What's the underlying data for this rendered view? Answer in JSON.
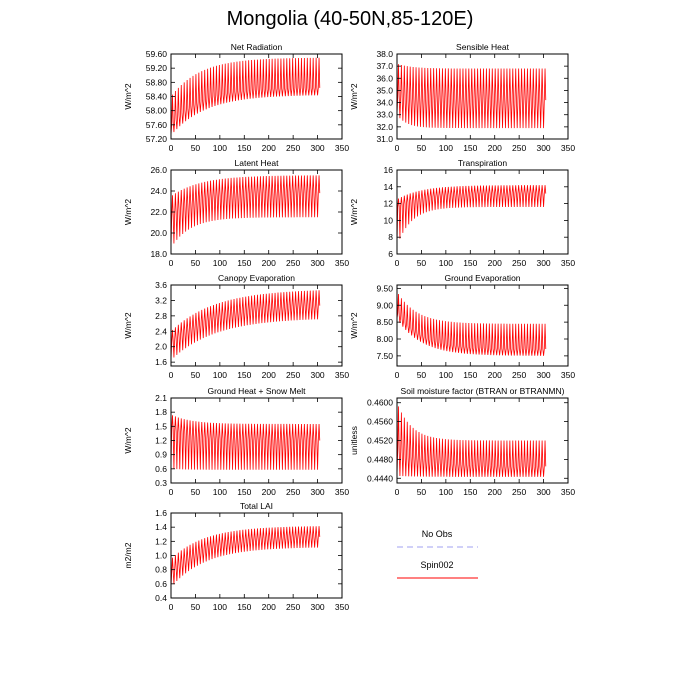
{
  "title": "Mongolia (40-50N,85-120E)",
  "legend": {
    "entries": [
      {
        "label": "No Obs",
        "color": "#a0a0f0",
        "style": "dashed"
      },
      {
        "label": "Spin002",
        "color": "#ff0000",
        "style": "solid"
      }
    ]
  },
  "chart_data": [
    {
      "type": "line",
      "title": "Net Radiation",
      "ylabel": "W/m^2",
      "xlim": [
        0,
        350
      ],
      "xticks": [
        0,
        50,
        100,
        150,
        200,
        250,
        300,
        350
      ],
      "ylim": [
        57.2,
        59.6
      ],
      "yticks": [
        "57.20",
        "57.60",
        "58.00",
        "58.40",
        "58.80",
        "59.20",
        "59.60"
      ],
      "series": [
        {
          "name": "Spin002",
          "color": "#ff0000",
          "x_end": 305,
          "period": 6,
          "low": {
            "start": 57.3,
            "end": 58.45,
            "tau": 70
          },
          "high": {
            "start": 58.4,
            "end": 59.5,
            "tau": 60
          },
          "mid": {
            "start": 57.6,
            "end": 58.65,
            "tau": 60
          }
        }
      ]
    },
    {
      "type": "line",
      "title": "Sensible Heat",
      "ylabel": "W/m^2",
      "xlim": [
        0,
        350
      ],
      "xticks": [
        0,
        50,
        100,
        150,
        200,
        250,
        300,
        350
      ],
      "ylim": [
        31.0,
        38.0
      ],
      "yticks": [
        "31.0",
        "32.0",
        "33.0",
        "34.0",
        "35.0",
        "36.0",
        "37.0",
        "38.0"
      ],
      "series": [
        {
          "name": "Spin002",
          "color": "#ff0000",
          "x_end": 305,
          "period": 6,
          "low": {
            "start": 33.0,
            "end": 31.9,
            "tau": 20
          },
          "high": {
            "start": 37.2,
            "end": 36.8,
            "tau": 30
          },
          "mid": {
            "start": 34.5,
            "end": 34.2,
            "tau": 30
          }
        }
      ]
    },
    {
      "type": "line",
      "title": "Latent Heat",
      "ylabel": "W/m^2",
      "xlim": [
        0,
        350
      ],
      "xticks": [
        0,
        50,
        100,
        150,
        200,
        250,
        300,
        350
      ],
      "ylim": [
        18.0,
        26.0
      ],
      "yticks": [
        "18.0",
        "20.0",
        "22.0",
        "24.0",
        "26.0"
      ],
      "series": [
        {
          "name": "Spin002",
          "color": "#ff0000",
          "x_end": 305,
          "period": 6,
          "low": {
            "start": 18.6,
            "end": 21.5,
            "tau": 40
          },
          "high": {
            "start": 23.5,
            "end": 25.5,
            "tau": 60
          },
          "mid": {
            "start": 21.5,
            "end": 23.8,
            "tau": 50
          }
        }
      ]
    },
    {
      "type": "line",
      "title": "Transpiration",
      "ylabel": "W/m^2",
      "xlim": [
        0,
        350
      ],
      "xticks": [
        0,
        50,
        100,
        150,
        200,
        250,
        300,
        350
      ],
      "ylim": [
        6,
        16
      ],
      "yticks": [
        "6",
        "8",
        "10",
        "12",
        "14",
        "16"
      ],
      "series": [
        {
          "name": "Spin002",
          "color": "#ff0000",
          "x_end": 305,
          "period": 6,
          "low": {
            "start": 7.0,
            "end": 11.6,
            "tau": 30
          },
          "high": {
            "start": 12.5,
            "end": 14.2,
            "tau": 50
          },
          "mid": {
            "start": 11.5,
            "end": 13.2,
            "tau": 50
          }
        }
      ]
    },
    {
      "type": "line",
      "title": "Canopy Evaporation",
      "ylabel": "W/m^2",
      "xlim": [
        0,
        350
      ],
      "xticks": [
        0,
        50,
        100,
        150,
        200,
        250,
        300,
        350
      ],
      "ylim": [
        1.5,
        3.6
      ],
      "yticks": [
        "1.6",
        "2.0",
        "2.4",
        "2.8",
        "3.2",
        "3.6"
      ],
      "series": [
        {
          "name": "Spin002",
          "color": "#ff0000",
          "x_end": 305,
          "period": 6,
          "low": {
            "start": 1.65,
            "end": 2.75,
            "tau": 90
          },
          "high": {
            "start": 2.4,
            "end": 3.5,
            "tau": 90
          },
          "mid": {
            "start": 2.1,
            "end": 3.1,
            "tau": 90
          }
        }
      ]
    },
    {
      "type": "line",
      "title": "Ground Evaporation",
      "ylabel": "W/m^2",
      "xlim": [
        0,
        350
      ],
      "xticks": [
        0,
        50,
        100,
        150,
        200,
        250,
        300,
        350
      ],
      "ylim": [
        7.2,
        9.6
      ],
      "yticks": [
        "7.50",
        "8.00",
        "8.50",
        "9.00",
        "9.50"
      ],
      "series": [
        {
          "name": "Spin002",
          "color": "#ff0000",
          "x_end": 305,
          "period": 6,
          "low": {
            "start": 8.6,
            "end": 7.5,
            "tau": 50
          },
          "high": {
            "start": 9.4,
            "end": 8.45,
            "tau": 40
          },
          "mid": {
            "start": 8.8,
            "end": 7.7,
            "tau": 50
          }
        }
      ]
    },
    {
      "type": "line",
      "title": "Ground Heat + Snow Melt",
      "ylabel": "W/m^2",
      "xlim": [
        0,
        350
      ],
      "xticks": [
        0,
        50,
        100,
        150,
        200,
        250,
        300,
        350
      ],
      "ylim": [
        0.3,
        2.1
      ],
      "yticks": [
        "0.3",
        "0.6",
        "0.9",
        "1.2",
        "1.5",
        "1.8",
        "2.1"
      ],
      "series": [
        {
          "name": "Spin002",
          "color": "#ff0000",
          "x_end": 305,
          "period": 6,
          "low": {
            "start": 0.6,
            "end": 0.58,
            "tau": 30
          },
          "high": {
            "start": 1.75,
            "end": 1.55,
            "tau": 40
          },
          "mid": {
            "start": 1.45,
            "end": 1.2,
            "tau": 40
          }
        }
      ]
    },
    {
      "type": "line",
      "title": "Soil moisture factor (BTRAN or BTRANMN)",
      "ylabel": "unitless",
      "xlim": [
        0,
        350
      ],
      "xticks": [
        0,
        50,
        100,
        150,
        200,
        250,
        300,
        350
      ],
      "ylim": [
        0.443,
        0.461
      ],
      "yticks": [
        "0.4440",
        "0.4480",
        "0.4520",
        "0.4560",
        "0.4600"
      ],
      "series": [
        {
          "name": "Spin002",
          "color": "#ff0000",
          "x_end": 305,
          "period": 6,
          "low": {
            "start": 0.4445,
            "end": 0.4443,
            "tau": 40
          },
          "high": {
            "start": 0.46,
            "end": 0.452,
            "tau": 30
          },
          "mid": {
            "start": 0.45,
            "end": 0.4465,
            "tau": 60
          }
        }
      ]
    },
    {
      "type": "line",
      "title": "Total LAI",
      "ylabel": "m2/m2",
      "xlim": [
        0,
        350
      ],
      "xticks": [
        0,
        50,
        100,
        150,
        200,
        250,
        300,
        350
      ],
      "ylim": [
        0.4,
        1.6
      ],
      "yticks": [
        "0.4",
        "0.6",
        "0.8",
        "1.0",
        "1.2",
        "1.4",
        "1.6"
      ],
      "series": [
        {
          "name": "Spin002",
          "color": "#ff0000",
          "x_end": 305,
          "period": 6,
          "low": {
            "start": 0.55,
            "end": 1.12,
            "tau": 70
          },
          "high": {
            "start": 0.95,
            "end": 1.42,
            "tau": 70
          },
          "mid": {
            "start": 0.75,
            "end": 1.27,
            "tau": 70
          }
        }
      ]
    }
  ]
}
